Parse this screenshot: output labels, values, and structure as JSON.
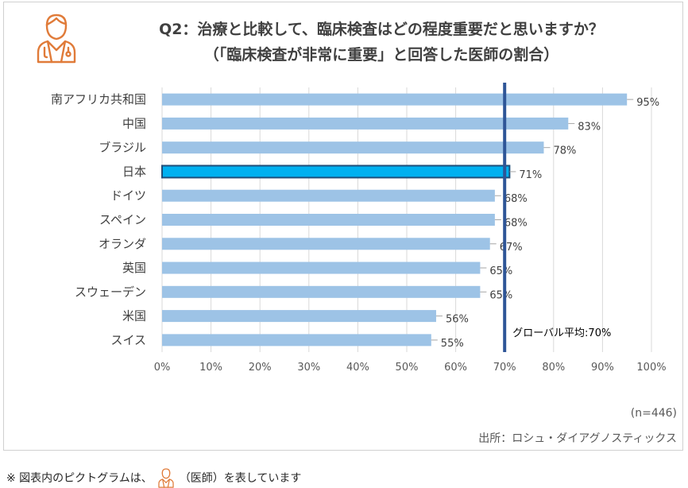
{
  "title_line1": "Q2：治療と比較して、臨床検査はどの程度重要だと思いますか？",
  "title_line2": "（「臨床検査が非常に重要」と回答した医師の割合）",
  "sample_size": "(n=446)",
  "source": "出所：ロシュ・ダイアグノスティックス",
  "footnote": {
    "prefix": "※ 図表内のピクトグラムは、",
    "suffix": "（医師）を表しています"
  },
  "icons": {
    "title_icon": "doctor-icon",
    "footnote_icon": "doctor-icon"
  },
  "colors": {
    "bar": "#9dc3e6",
    "highlight_bar": "#00b0f0",
    "highlight_border": "#1f4e79",
    "avg_line": "#2e5597",
    "icon": "#e07b39"
  },
  "chart_data": {
    "type": "bar",
    "orientation": "horizontal",
    "categories": [
      "南アフリカ共和国",
      "中国",
      "ブラジル",
      "日本",
      "ドイツ",
      "スペイン",
      "オランダ",
      "英国",
      "スウェーデン",
      "米国",
      "スイス"
    ],
    "values": [
      95,
      83,
      78,
      71,
      68,
      68,
      67,
      65,
      65,
      56,
      55
    ],
    "value_labels": [
      "95%",
      "83%",
      "78%",
      "71%",
      "68%",
      "68%",
      "67%",
      "65%",
      "65%",
      "56%",
      "55%"
    ],
    "highlight": "日本",
    "xlim": [
      0,
      100
    ],
    "xticks": [
      0,
      10,
      20,
      30,
      40,
      50,
      60,
      70,
      80,
      90,
      100
    ],
    "xtick_labels": [
      "0%",
      "10%",
      "20%",
      "30%",
      "40%",
      "50%",
      "60%",
      "70%",
      "80%",
      "90%",
      "100%"
    ],
    "grid": true,
    "reference_line": {
      "value": 70,
      "label": "グローバル平均:70%"
    }
  }
}
